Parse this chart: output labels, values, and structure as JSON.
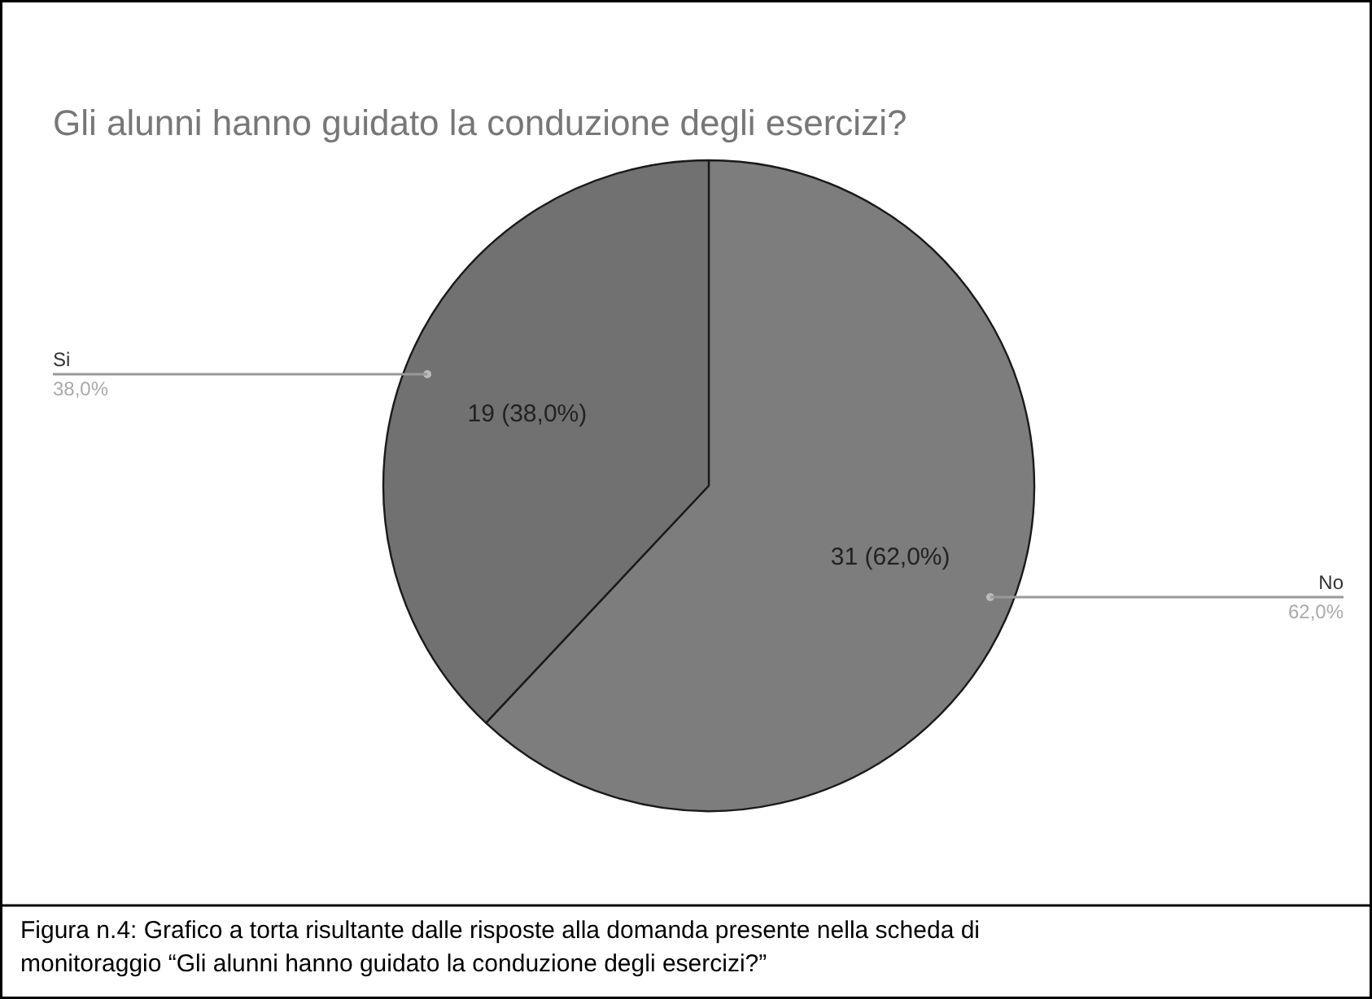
{
  "chart_data": {
    "type": "pie",
    "title": "Gli alunni hanno guidato la conduzione degli esercizi?",
    "categories": [
      "No",
      "Si"
    ],
    "values": [
      31,
      19
    ],
    "colors": [
      "#7d7d7d",
      "#717171"
    ],
    "value_labels": [
      "31 (62,0%)",
      "19 (38,0%)"
    ],
    "annotations": [
      {
        "text": "62,0%",
        "x": "No"
      },
      {
        "text": "38,0%",
        "x": "Si"
      },
      "Figura n.4: Grafico a torta risultante dalle risposte alla domanda presente nella scheda di\nmonitoraggio “Gli alunni hanno guidato la conduzione degli esercizi?”"
    ]
  }
}
